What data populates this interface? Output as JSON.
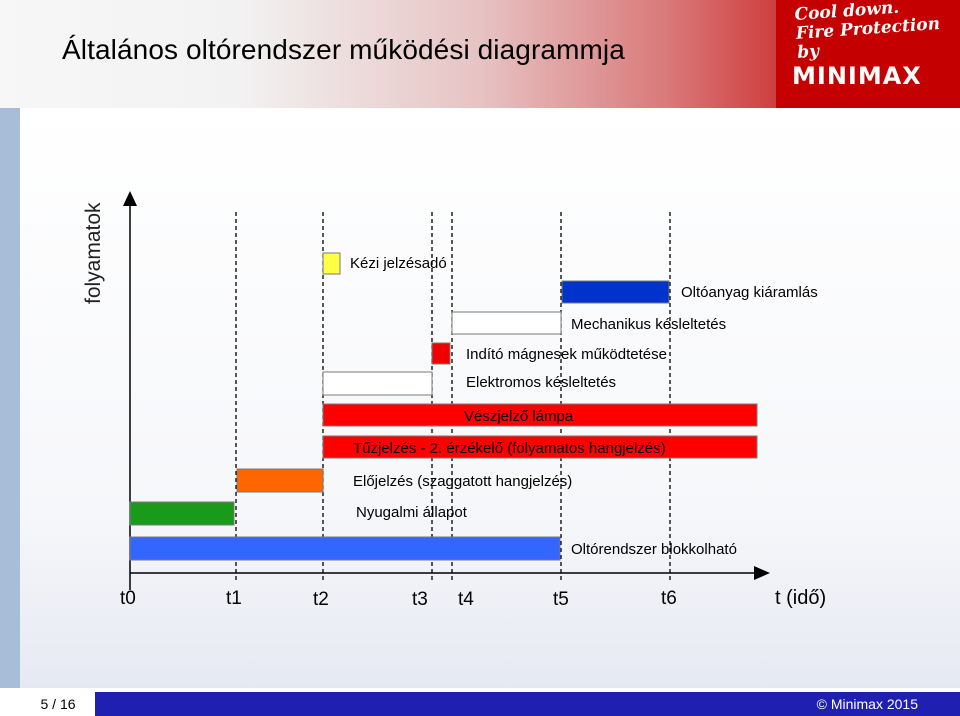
{
  "slide": {
    "title": "Általános oltórendszer működési diagrammja",
    "y_axis_label": "folyamatok",
    "x_axis_label": "t (idő)",
    "page": "5 / 16",
    "copyright": "© Minimax 2015"
  },
  "logo": {
    "slogan_line1": "Cool down.",
    "slogan_line2": "Fire Protection by",
    "brand": "MINIMAX"
  },
  "time_marks": [
    {
      "label": "t0"
    },
    {
      "label": "t1"
    },
    {
      "label": "t2"
    },
    {
      "label": "t3"
    },
    {
      "label": "t4"
    },
    {
      "label": "t5"
    },
    {
      "label": "t6"
    }
  ],
  "processes": [
    {
      "label": "Kézi jelzésadó",
      "start": "t2",
      "end": "t2",
      "color": "#ffff44"
    },
    {
      "label": "Oltóanyag kiáramlás",
      "start": "t5",
      "end": "t6",
      "color": "#0033cc"
    },
    {
      "label": "Mechanikus késleltetés",
      "start": "t4",
      "end": "t5",
      "color": "#ffffff"
    },
    {
      "label": "Indító mágnesek működtetése",
      "start": "t3",
      "end": "t4",
      "color": "#ee0000"
    },
    {
      "label": "Elektromos késleltetés",
      "start": "t2",
      "end": "t3",
      "color": "#ffffff"
    },
    {
      "label": "Vészjelző lámpa",
      "start": "t2",
      "end": "t(idő)",
      "color": "#ff0000"
    },
    {
      "label": "Tűzjelzés - 2. érzékelő (folyamatos hangjelzés)",
      "start": "t2",
      "end": "t(idő)",
      "color": "#ff0000"
    },
    {
      "label": "Előjelzés (szaggatott hangjelzés)",
      "start": "t1",
      "end": "t2",
      "color": "#ff6600"
    },
    {
      "label": "Nyugalmi állapot",
      "start": "t0",
      "end": "t1",
      "color": "#1a9a1a"
    },
    {
      "label": "Oltórendszer blokkolható",
      "start": "t0",
      "end": "t5",
      "color": "#3366ff"
    }
  ]
}
